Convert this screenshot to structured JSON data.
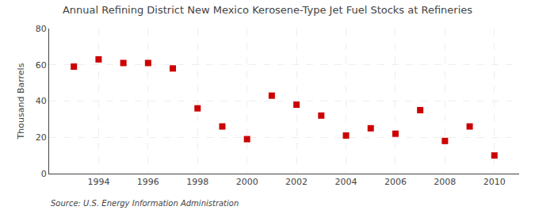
{
  "chart_data": {
    "type": "scatter",
    "title": "Annual Refining District New Mexico Kerosene-Type Jet Fuel Stocks at Refineries",
    "ylabel": "Thousand Barrels",
    "annotations": [
      "Source: U.S. Energy Information Administration"
    ],
    "x": [
      1993,
      1994,
      1995,
      1996,
      1997,
      1998,
      1999,
      2000,
      2001,
      2002,
      2003,
      2004,
      2005,
      2006,
      2007,
      2008,
      2009,
      2010
    ],
    "values": [
      59,
      63,
      61,
      61,
      58,
      36,
      26,
      19,
      43,
      38,
      32,
      21,
      25,
      22,
      35,
      18,
      26,
      10
    ],
    "color": "#cc0000",
    "marker": "square",
    "xlim": [
      1992.0,
      2011.0
    ],
    "ylim": [
      0,
      80
    ],
    "xticks": [
      1994,
      1996,
      1998,
      2000,
      2002,
      2004,
      2006,
      2008,
      2010
    ],
    "yticks": [
      0,
      20,
      40,
      60,
      80
    ],
    "grid": true
  }
}
